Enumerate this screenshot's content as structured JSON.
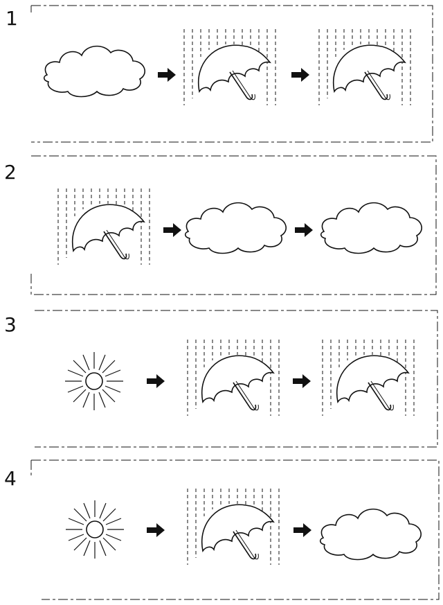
{
  "rows": [
    {
      "number": "1",
      "sequence": [
        "cloud",
        "umbrella-rain",
        "umbrella-rain"
      ]
    },
    {
      "number": "2",
      "sequence": [
        "umbrella-rain",
        "cloud",
        "cloud"
      ]
    },
    {
      "number": "3",
      "sequence": [
        "sun",
        "umbrella-rain",
        "umbrella-rain"
      ]
    },
    {
      "number": "4",
      "sequence": [
        "sun",
        "umbrella-rain",
        "cloud"
      ]
    }
  ],
  "colors": {
    "ink": "#111111",
    "background": "#ffffff"
  }
}
